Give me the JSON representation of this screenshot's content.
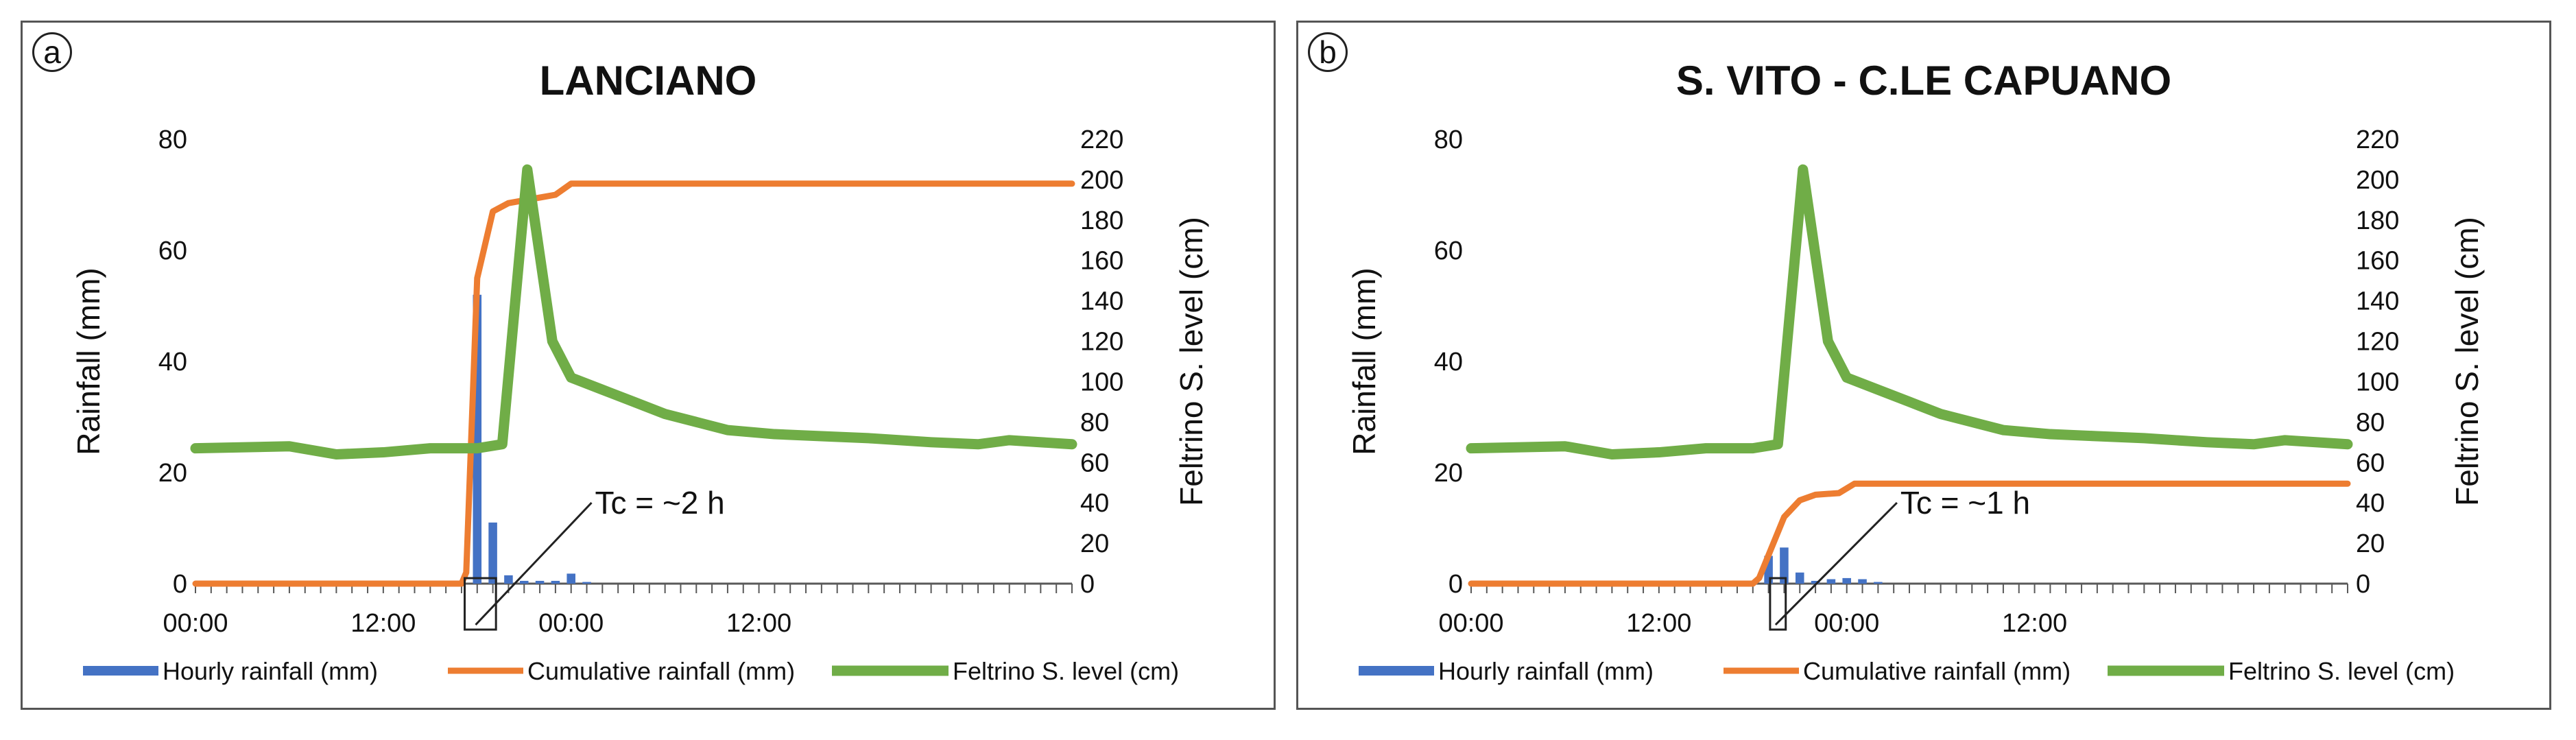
{
  "colors": {
    "hourly": "#4472C4",
    "cumulative": "#ED7D31",
    "level": "#70AD47",
    "axis": "#595959",
    "text": "#111111"
  },
  "chart_data": [
    {
      "panel_label": "a",
      "title": "LANCIANO",
      "type": "bar+line",
      "xlabel": "",
      "ylabel": "Rainfall (mm)",
      "y2label": "Feltrino S. level (cm)",
      "ylim": [
        0,
        80
      ],
      "y2lim": [
        0,
        220
      ],
      "yticks": [
        "0",
        "20",
        "40",
        "60",
        "80"
      ],
      "y2ticks": [
        "0",
        "20",
        "40",
        "60",
        "80",
        "100",
        "120",
        "140",
        "160",
        "180",
        "200",
        "220"
      ],
      "xlim": [
        0,
        56
      ],
      "xticks": [
        {
          "x": 0,
          "label": "00:00"
        },
        {
          "x": 12,
          "label": "12:00"
        },
        {
          "x": 24,
          "label": "00:00"
        },
        {
          "x": 36,
          "label": "12:00"
        }
      ],
      "legend": [
        "Hourly rainfall (mm)",
        "Cumulative rainfall (mm)",
        "Feltrino S. level (cm)"
      ],
      "annotation": "Tc = ~2 h",
      "tc_window": [
        17.2,
        19.2
      ],
      "hourly_rainfall": [
        {
          "x": 18,
          "y": 52
        },
        {
          "x": 19,
          "y": 11
        },
        {
          "x": 20,
          "y": 1.5
        },
        {
          "x": 21,
          "y": 0.5
        },
        {
          "x": 22,
          "y": 0.5
        },
        {
          "x": 23,
          "y": 0.5
        },
        {
          "x": 24,
          "y": 1.8
        },
        {
          "x": 25,
          "y": 0.3
        }
      ],
      "cumulative_rainfall": [
        {
          "x": 0,
          "y": 0
        },
        {
          "x": 17,
          "y": 0
        },
        {
          "x": 17.3,
          "y": 2
        },
        {
          "x": 18,
          "y": 55
        },
        {
          "x": 19,
          "y": 67
        },
        {
          "x": 20,
          "y": 68.5
        },
        {
          "x": 22,
          "y": 69.5
        },
        {
          "x": 23,
          "y": 70
        },
        {
          "x": 24,
          "y": 72
        },
        {
          "x": 56,
          "y": 72
        }
      ],
      "feltrino_level": [
        {
          "x": 0,
          "y": 67
        },
        {
          "x": 6,
          "y": 68
        },
        {
          "x": 9,
          "y": 64
        },
        {
          "x": 12,
          "y": 65
        },
        {
          "x": 15,
          "y": 67
        },
        {
          "x": 18,
          "y": 67
        },
        {
          "x": 19.6,
          "y": 69
        },
        {
          "x": 21.2,
          "y": 205
        },
        {
          "x": 22.8,
          "y": 120
        },
        {
          "x": 24,
          "y": 102
        },
        {
          "x": 26,
          "y": 96
        },
        {
          "x": 28,
          "y": 90
        },
        {
          "x": 30,
          "y": 84
        },
        {
          "x": 32,
          "y": 80
        },
        {
          "x": 34,
          "y": 76
        },
        {
          "x": 37,
          "y": 74
        },
        {
          "x": 40,
          "y": 73
        },
        {
          "x": 43,
          "y": 72
        },
        {
          "x": 47,
          "y": 70
        },
        {
          "x": 50,
          "y": 69
        },
        {
          "x": 52,
          "y": 71
        },
        {
          "x": 56,
          "y": 69
        }
      ]
    },
    {
      "panel_label": "b",
      "title": "S. VITO - C.LE CAPUANO",
      "type": "bar+line",
      "xlabel": "",
      "ylabel": "Rainfall (mm)",
      "y2label": "Feltrino S. level (cm)",
      "ylim": [
        0,
        80
      ],
      "y2lim": [
        0,
        220
      ],
      "yticks": [
        "0",
        "20",
        "40",
        "60",
        "80"
      ],
      "y2ticks": [
        "0",
        "20",
        "40",
        "60",
        "80",
        "100",
        "120",
        "140",
        "160",
        "180",
        "200",
        "220"
      ],
      "xlim": [
        0,
        56
      ],
      "xticks": [
        {
          "x": 0,
          "label": "00:00"
        },
        {
          "x": 12,
          "label": "12:00"
        },
        {
          "x": 24,
          "label": "00:00"
        },
        {
          "x": 36,
          "label": "12:00"
        }
      ],
      "legend": [
        "Hourly rainfall (mm)",
        "Cumulative rainfall (mm)",
        "Feltrino S. level (cm)"
      ],
      "annotation": "Tc = ~1 h",
      "tc_window": [
        19.1,
        20.1
      ],
      "hourly_rainfall": [
        {
          "x": 19,
          "y": 5
        },
        {
          "x": 20,
          "y": 6.5
        },
        {
          "x": 21,
          "y": 2
        },
        {
          "x": 22,
          "y": 0.5
        },
        {
          "x": 23,
          "y": 0.8
        },
        {
          "x": 24,
          "y": 1
        },
        {
          "x": 25,
          "y": 0.8
        },
        {
          "x": 26,
          "y": 0.3
        }
      ],
      "cumulative_rainfall": [
        {
          "x": 0,
          "y": 0
        },
        {
          "x": 18,
          "y": 0
        },
        {
          "x": 18.4,
          "y": 1
        },
        {
          "x": 20,
          "y": 12
        },
        {
          "x": 21,
          "y": 15
        },
        {
          "x": 22,
          "y": 16
        },
        {
          "x": 23.5,
          "y": 16.3
        },
        {
          "x": 24.5,
          "y": 18
        },
        {
          "x": 56,
          "y": 18
        }
      ],
      "feltrino_level": [
        {
          "x": 0,
          "y": 67
        },
        {
          "x": 6,
          "y": 68
        },
        {
          "x": 9,
          "y": 64
        },
        {
          "x": 12,
          "y": 65
        },
        {
          "x": 15,
          "y": 67
        },
        {
          "x": 18,
          "y": 67
        },
        {
          "x": 19.6,
          "y": 69
        },
        {
          "x": 21.2,
          "y": 205
        },
        {
          "x": 22.8,
          "y": 120
        },
        {
          "x": 24,
          "y": 102
        },
        {
          "x": 26,
          "y": 96
        },
        {
          "x": 28,
          "y": 90
        },
        {
          "x": 30,
          "y": 84
        },
        {
          "x": 32,
          "y": 80
        },
        {
          "x": 34,
          "y": 76
        },
        {
          "x": 37,
          "y": 74
        },
        {
          "x": 40,
          "y": 73
        },
        {
          "x": 43,
          "y": 72
        },
        {
          "x": 47,
          "y": 70
        },
        {
          "x": 50,
          "y": 69
        },
        {
          "x": 52,
          "y": 71
        },
        {
          "x": 56,
          "y": 69
        }
      ]
    }
  ]
}
